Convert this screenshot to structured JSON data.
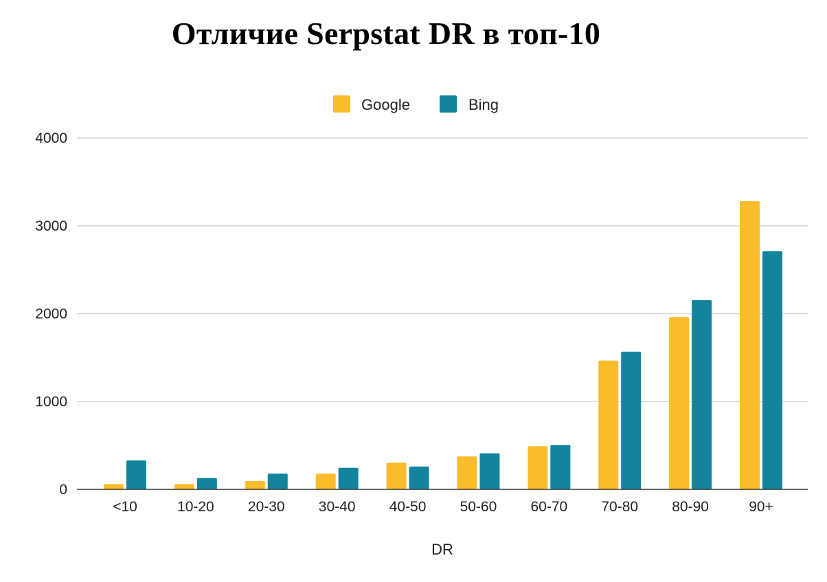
{
  "chart_data": {
    "type": "bar",
    "title": "Отличие Serpstat DR в топ-10",
    "xlabel": "DR",
    "ylabel": "",
    "categories": [
      "<10",
      "10-20",
      "20-30",
      "30-40",
      "40-50",
      "50-60",
      "60-70",
      "70-80",
      "80-90",
      "90+"
    ],
    "series": [
      {
        "name": "Google",
        "color": "#F9BC2C",
        "values": [
          60,
          60,
          95,
          180,
          305,
          375,
          490,
          1465,
          1960,
          3280
        ]
      },
      {
        "name": "Bing",
        "color": "#13849C",
        "values": [
          330,
          130,
          180,
          245,
          260,
          410,
          505,
          1565,
          2155,
          2710
        ]
      }
    ],
    "ylim": [
      0,
      4000
    ],
    "yticks": [
      0,
      1000,
      2000,
      3000,
      4000
    ],
    "grid": true,
    "legend": "top-center"
  }
}
